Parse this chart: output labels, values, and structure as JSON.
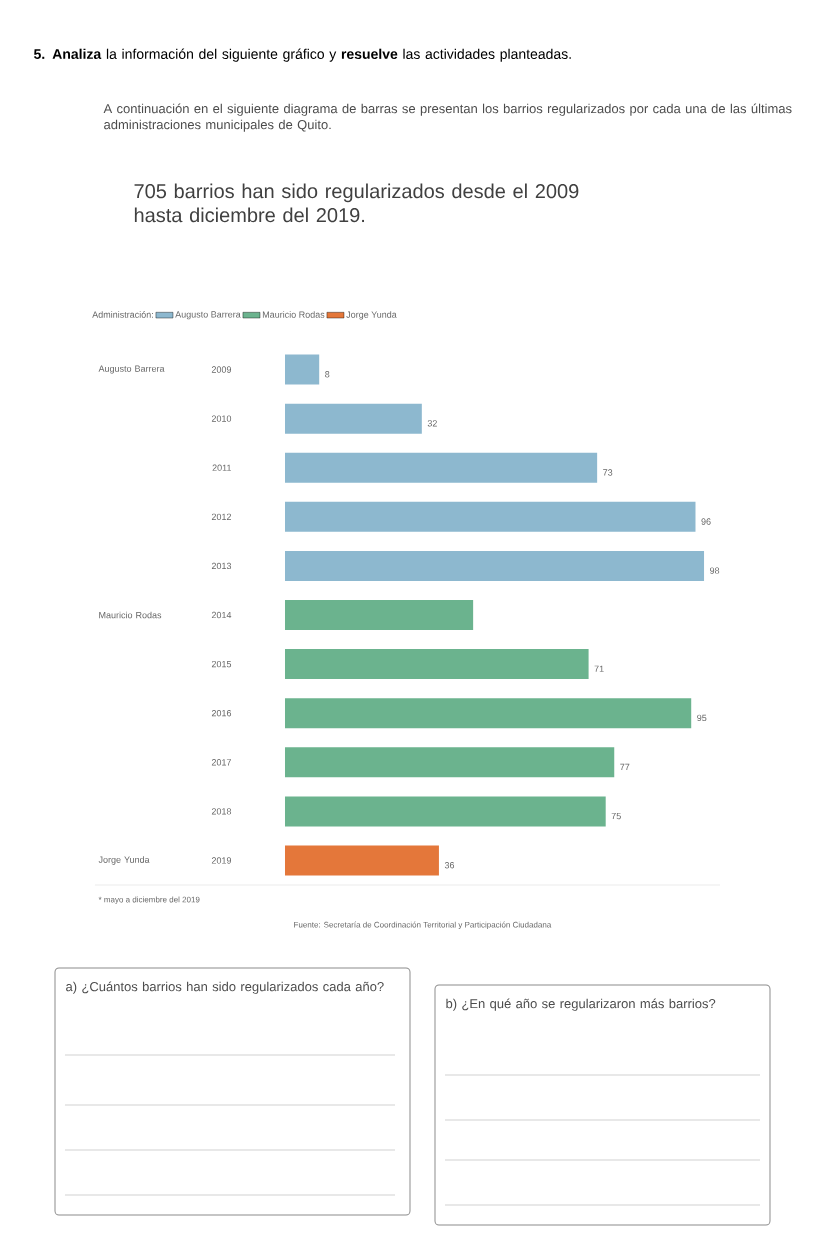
{
  "chart_data": {
    "type": "bar",
    "orientation": "horizontal",
    "title": "705 barrios han sido regularizados desde el 2009 hasta diciembre del 2019.",
    "subtitle": "A continuación en el siguiente diagrama de barras se presentan los barrios regularizados por cada una de las últimas administraciones municipales de Quito.",
    "legend_title": "Administración:",
    "legend": "top",
    "categories": [
      "2009",
      "2010",
      "2011",
      "2012",
      "2013",
      "2014",
      "2015",
      "2016",
      "2017",
      "2018",
      "2019"
    ],
    "series": [
      {
        "name": "Augusto Barrera",
        "color": "#8db8cf",
        "values": [
          8,
          32,
          73,
          96,
          98,
          null,
          null,
          null,
          null,
          null,
          null
        ],
        "value_labels": [
          "8",
          "32",
          "73",
          "96",
          "98",
          null,
          null,
          null,
          null,
          null,
          null
        ]
      },
      {
        "name": "Mauricio Rodas",
        "color": "#6bb38e",
        "values": [
          null,
          null,
          null,
          null,
          null,
          44,
          71,
          95,
          77,
          75,
          null
        ],
        "value_labels": [
          null,
          null,
          null,
          null,
          null,
          null,
          "71",
          "95",
          "77",
          "75",
          null
        ]
      },
      {
        "name": "Jorge Yunda",
        "color": "#e4773a",
        "values": [
          null,
          null,
          null,
          null,
          null,
          null,
          null,
          null,
          null,
          null,
          36
        ],
        "value_labels": [
          null,
          null,
          null,
          null,
          null,
          null,
          null,
          null,
          null,
          null,
          "36"
        ]
      }
    ],
    "annotations": [
      "**5. Analiza** la información del siguiente gráfico y **resuelve** las actividades planteadas.",
      "* mayo a diciembre del 2019",
      "Fuente: Secretaría de Coordinación Territorial y Participación Ciudadana",
      "a) ¿Cuántos barrios han sido regularizados cada año?",
      "b) ¿En qué año se regularizaron más barrios?"
    ]
  }
}
